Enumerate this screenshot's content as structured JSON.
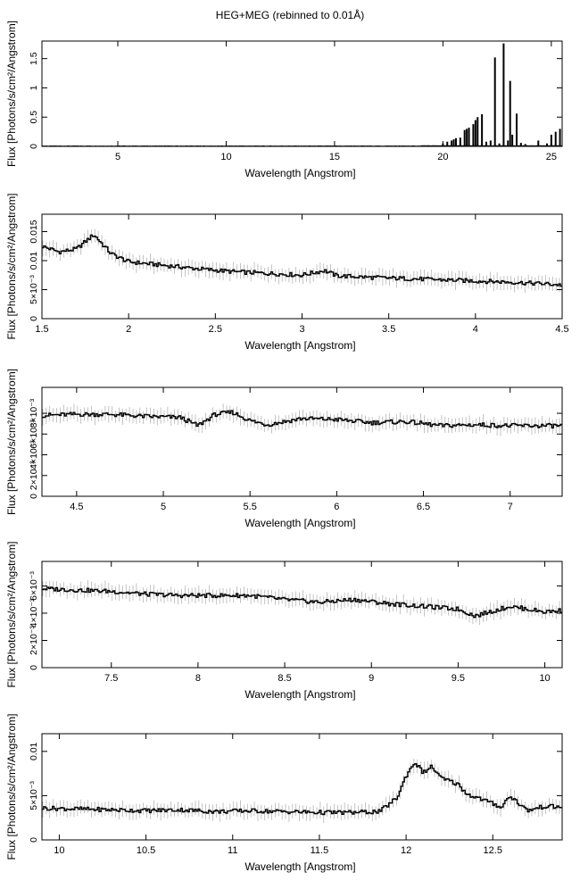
{
  "page": {
    "title": "HEG+MEG (rebinned to 0.01Å)"
  },
  "chart_data": [
    {
      "type": "line",
      "panel": "full-range",
      "xlabel": "Wavelength [Angstrom]",
      "ylabel": "Flux [Photons/s/cm²/Angstrom]",
      "xlim": [
        1.5,
        25.5
      ],
      "ylim": [
        0,
        1.8
      ],
      "xticks": [
        5,
        10,
        15,
        20,
        25
      ],
      "xtick_labels": [
        "5",
        "10",
        "15",
        "20",
        "25"
      ],
      "yticks": [
        0,
        0.5,
        1,
        1.5
      ],
      "ytick_labels": [
        "0",
        "0.5",
        "1",
        "1.5"
      ],
      "grid": false,
      "series": [
        {
          "x": [
            1.5,
            3,
            5,
            7,
            9,
            11,
            13,
            15,
            17,
            18,
            19,
            19.5,
            19.8,
            20.0,
            20.2,
            20.4,
            20.5,
            20.6,
            20.8,
            21.0,
            21.1,
            21.2,
            21.4,
            21.5,
            21.6,
            21.8,
            22.0,
            22.2,
            22.4,
            22.6,
            22.8,
            23.0,
            23.1,
            23.2,
            23.4,
            23.6,
            23.8,
            24.0,
            24.4,
            24.8,
            25.0,
            25.2,
            25.4
          ],
          "y": [
            0.008,
            0.006,
            0.005,
            0.004,
            0.004,
            0.004,
            0.004,
            0.005,
            0.006,
            0.008,
            0.01,
            0.015,
            0.02,
            0.05,
            0.08,
            0.1,
            0.12,
            0.14,
            0.15,
            0.28,
            0.3,
            0.32,
            0.38,
            0.45,
            0.5,
            0.55,
            0.08,
            0.1,
            1.52,
            0.05,
            1.76,
            0.1,
            1.12,
            0.2,
            0.56,
            0.06,
            0.04,
            0.03,
            0.1,
            0.05,
            0.2,
            0.25,
            0.3
          ]
        }
      ]
    },
    {
      "type": "line",
      "panel": "1.5-4.5",
      "xlabel": "Wavelength [Angstrom]",
      "ylabel": "Flux [Photons/s/cm²/Angstrom]",
      "xlim": [
        1.5,
        4.5
      ],
      "ylim": [
        0,
        0.018
      ],
      "xticks": [
        1.5,
        2,
        2.5,
        3,
        3.5,
        4,
        4.5
      ],
      "xtick_labels": [
        "1.5",
        "2",
        "2.5",
        "3",
        "3.5",
        "4",
        "4.5"
      ],
      "yticks": [
        0,
        0.005,
        0.01,
        0.015
      ],
      "ytick_labels": [
        "0",
        "5×10⁻³",
        "0.01",
        "0.015"
      ],
      "grid": false,
      "series": [
        {
          "x": [
            1.5,
            1.6,
            1.7,
            1.8,
            1.9,
            2.0,
            2.2,
            2.4,
            2.6,
            2.8,
            3.0,
            3.13,
            3.2,
            3.4,
            3.6,
            3.8,
            4.0,
            4.2,
            4.4,
            4.5
          ],
          "y": [
            0.0125,
            0.0115,
            0.012,
            0.0145,
            0.0112,
            0.0098,
            0.0092,
            0.0086,
            0.0081,
            0.0078,
            0.0075,
            0.0083,
            0.0074,
            0.0071,
            0.0069,
            0.0067,
            0.0065,
            0.0063,
            0.006,
            0.0058
          ]
        }
      ]
    },
    {
      "type": "line",
      "panel": "4.3-7.3",
      "xlabel": "Wavelength [Angstrom]",
      "ylabel": "Flux [Photons/s/cm²/Angstrom]",
      "xlim": [
        4.3,
        7.3
      ],
      "ylim": [
        0,
        0.0105
      ],
      "xticks": [
        4.5,
        5,
        5.5,
        6,
        6.5,
        7
      ],
      "xtick_labels": [
        "4.5",
        "5",
        "5.5",
        "6",
        "6.5",
        "7"
      ],
      "yticks": [
        0,
        0.002,
        0.004,
        0.006,
        0.008
      ],
      "ytick_labels": [
        "0",
        "2×10⁻³",
        "4×10⁻³",
        "6×10⁻³",
        "8×10⁻³"
      ],
      "grid": false,
      "series": [
        {
          "x": [
            4.3,
            4.5,
            4.7,
            4.9,
            5.1,
            5.2,
            5.3,
            5.4,
            5.5,
            5.6,
            5.8,
            6.0,
            6.2,
            6.4,
            6.6,
            6.8,
            7.0,
            7.2,
            7.3
          ],
          "y": [
            0.0078,
            0.0079,
            0.0079,
            0.0077,
            0.0076,
            0.0068,
            0.0079,
            0.0081,
            0.0073,
            0.0069,
            0.0075,
            0.0074,
            0.0071,
            0.0072,
            0.0068,
            0.0069,
            0.0068,
            0.0068,
            0.0068
          ]
        }
      ]
    },
    {
      "type": "line",
      "panel": "7.1-10.1",
      "xlabel": "Wavelength [Angstrom]",
      "ylabel": "Flux [Photons/s/cm²/Angstrom]",
      "xlim": [
        7.1,
        10.1
      ],
      "ylim": [
        0,
        0.0078
      ],
      "xticks": [
        7.5,
        8,
        8.5,
        9,
        9.5,
        10
      ],
      "xtick_labels": [
        "7.5",
        "8",
        "8.5",
        "9",
        "9.5",
        "10"
      ],
      "yticks": [
        0,
        0.002,
        0.004,
        0.006
      ],
      "ytick_labels": [
        "0",
        "2×10⁻³",
        "4×10⁻³",
        "6×10⁻³"
      ],
      "grid": false,
      "series": [
        {
          "x": [
            7.1,
            7.3,
            7.5,
            7.7,
            7.9,
            8.1,
            8.3,
            8.5,
            8.7,
            8.9,
            9.1,
            9.3,
            9.5,
            9.6,
            9.8,
            10.0,
            10.1
          ],
          "y": [
            0.0058,
            0.0057,
            0.0056,
            0.0054,
            0.0053,
            0.0053,
            0.0053,
            0.005,
            0.0048,
            0.005,
            0.0047,
            0.0045,
            0.0043,
            0.0038,
            0.0045,
            0.0041,
            0.0042
          ]
        }
      ]
    },
    {
      "type": "line",
      "panel": "9.9-12.9",
      "xlabel": "Wavelength [Angstrom]",
      "ylabel": "Flux [Photons/s/cm²/Angstrom]",
      "xlim": [
        9.9,
        12.9
      ],
      "ylim": [
        0,
        0.012
      ],
      "xticks": [
        10,
        10.5,
        11,
        11.5,
        12,
        12.5
      ],
      "xtick_labels": [
        "10",
        "10.5",
        "11",
        "11.5",
        "12",
        "12.5"
      ],
      "yticks": [
        0,
        0.005,
        0.01
      ],
      "ytick_labels": [
        "0",
        "5×10⁻³",
        "0.01"
      ],
      "grid": false,
      "series": [
        {
          "x": [
            9.9,
            10.1,
            10.3,
            10.5,
            10.7,
            10.9,
            11.1,
            11.3,
            11.5,
            11.7,
            11.85,
            11.95,
            12.0,
            12.05,
            12.1,
            12.15,
            12.2,
            12.3,
            12.35,
            12.45,
            12.55,
            12.6,
            12.7,
            12.8,
            12.9
          ],
          "y": [
            0.0036,
            0.0035,
            0.0034,
            0.0033,
            0.0034,
            0.0032,
            0.0033,
            0.0032,
            0.0031,
            0.0031,
            0.0032,
            0.0048,
            0.0072,
            0.0088,
            0.0076,
            0.0083,
            0.007,
            0.0063,
            0.0052,
            0.0045,
            0.0037,
            0.005,
            0.0033,
            0.0038,
            0.0037
          ]
        }
      ]
    }
  ]
}
